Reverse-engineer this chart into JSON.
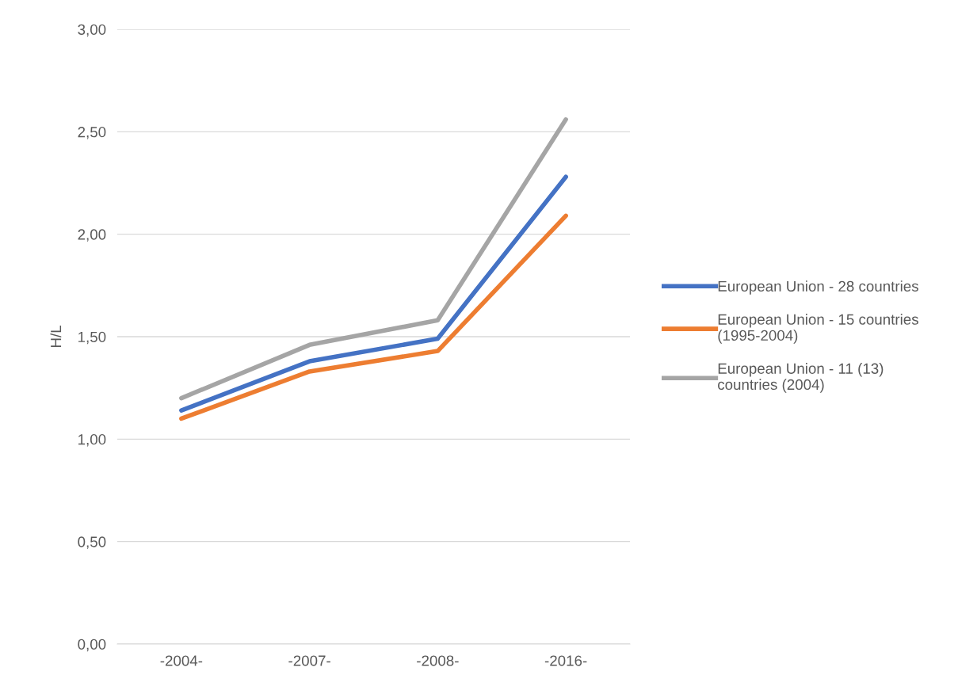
{
  "chart_data": {
    "type": "line",
    "ylabel": "H/L",
    "categories": [
      "-2004-",
      "-2007-",
      "-2008-",
      "-2016-"
    ],
    "series": [
      {
        "name": "European Union - 28 countries",
        "color": "#4472c4",
        "values": [
          1.14,
          1.38,
          1.49,
          2.28
        ]
      },
      {
        "name": "European Union - 15 countries\n(1995-2004)",
        "color": "#ed7d31",
        "values": [
          1.1,
          1.33,
          1.43,
          2.09
        ]
      },
      {
        "name": "European Union - 11 (13)\ncountries (2004)",
        "color": "#a5a5a5",
        "values": [
          1.2,
          1.46,
          1.58,
          2.56
        ]
      }
    ],
    "ylim": [
      0,
      3
    ],
    "yticks": [
      {
        "value": 0,
        "label": "0,00"
      },
      {
        "value": 0.5,
        "label": "0,50"
      },
      {
        "value": 1,
        "label": "1,00"
      },
      {
        "value": 1.5,
        "label": "1,50"
      },
      {
        "value": 2,
        "label": "2,00"
      },
      {
        "value": 2.5,
        "label": "2,50"
      },
      {
        "value": 3,
        "label": "3,00"
      }
    ],
    "grid": "y",
    "legend": "right",
    "marker": "none",
    "line_style": "solid"
  }
}
